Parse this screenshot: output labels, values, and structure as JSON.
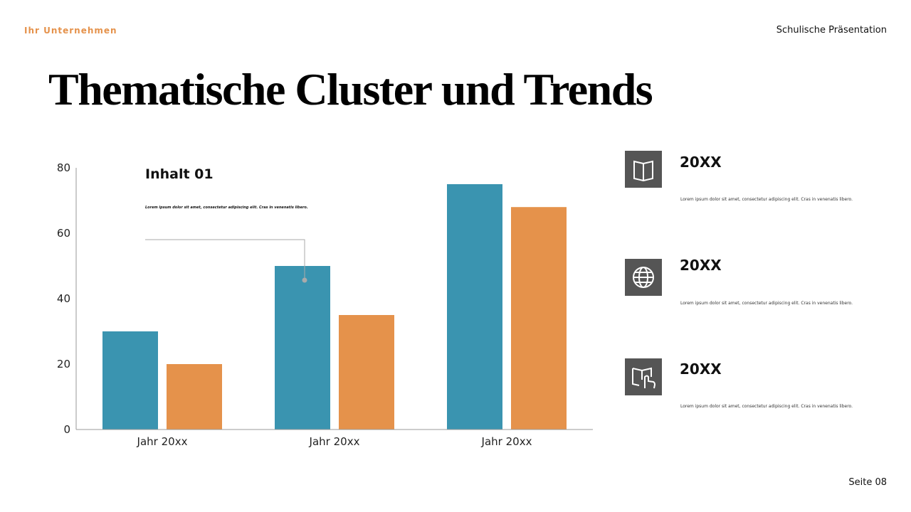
{
  "header": {
    "company": "Ihr Unternehmen",
    "presentation": "Schulische Präsentation"
  },
  "title": "Thematische Cluster und Trends",
  "chart_data": {
    "type": "bar",
    "categories": [
      "Jahr 20xx",
      "Jahr 20xx",
      "Jahr 20xx"
    ],
    "series": [
      {
        "color": "#3a94b0",
        "values": [
          30,
          50,
          75
        ]
      },
      {
        "color": "#e5924b",
        "values": [
          20,
          35,
          68
        ]
      }
    ],
    "ylim": [
      0,
      80
    ],
    "yticks": [
      0,
      20,
      40,
      60,
      80
    ],
    "grid": false,
    "annotation": {
      "title": "Inhalt 01",
      "text": "Lorem ipsum dolor sit amet, consectetur adipiscing elit. Cras in venenatis libero."
    }
  },
  "items": [
    {
      "title": "20XX",
      "text": "Lorem ipsum dolor sit amet, consectetur adipiscing elit. Cras in venenatis libero."
    },
    {
      "title": "20XX",
      "text": "Lorem ipsum dolor sit amet, consectetur adipiscing elit. Cras in venenatis libero."
    },
    {
      "title": "20XX",
      "text": "Lorem ipsum dolor sit amet, consectetur adipiscing elit. Cras in venenatis libero."
    }
  ],
  "footer": {
    "page": "Seite 08"
  }
}
